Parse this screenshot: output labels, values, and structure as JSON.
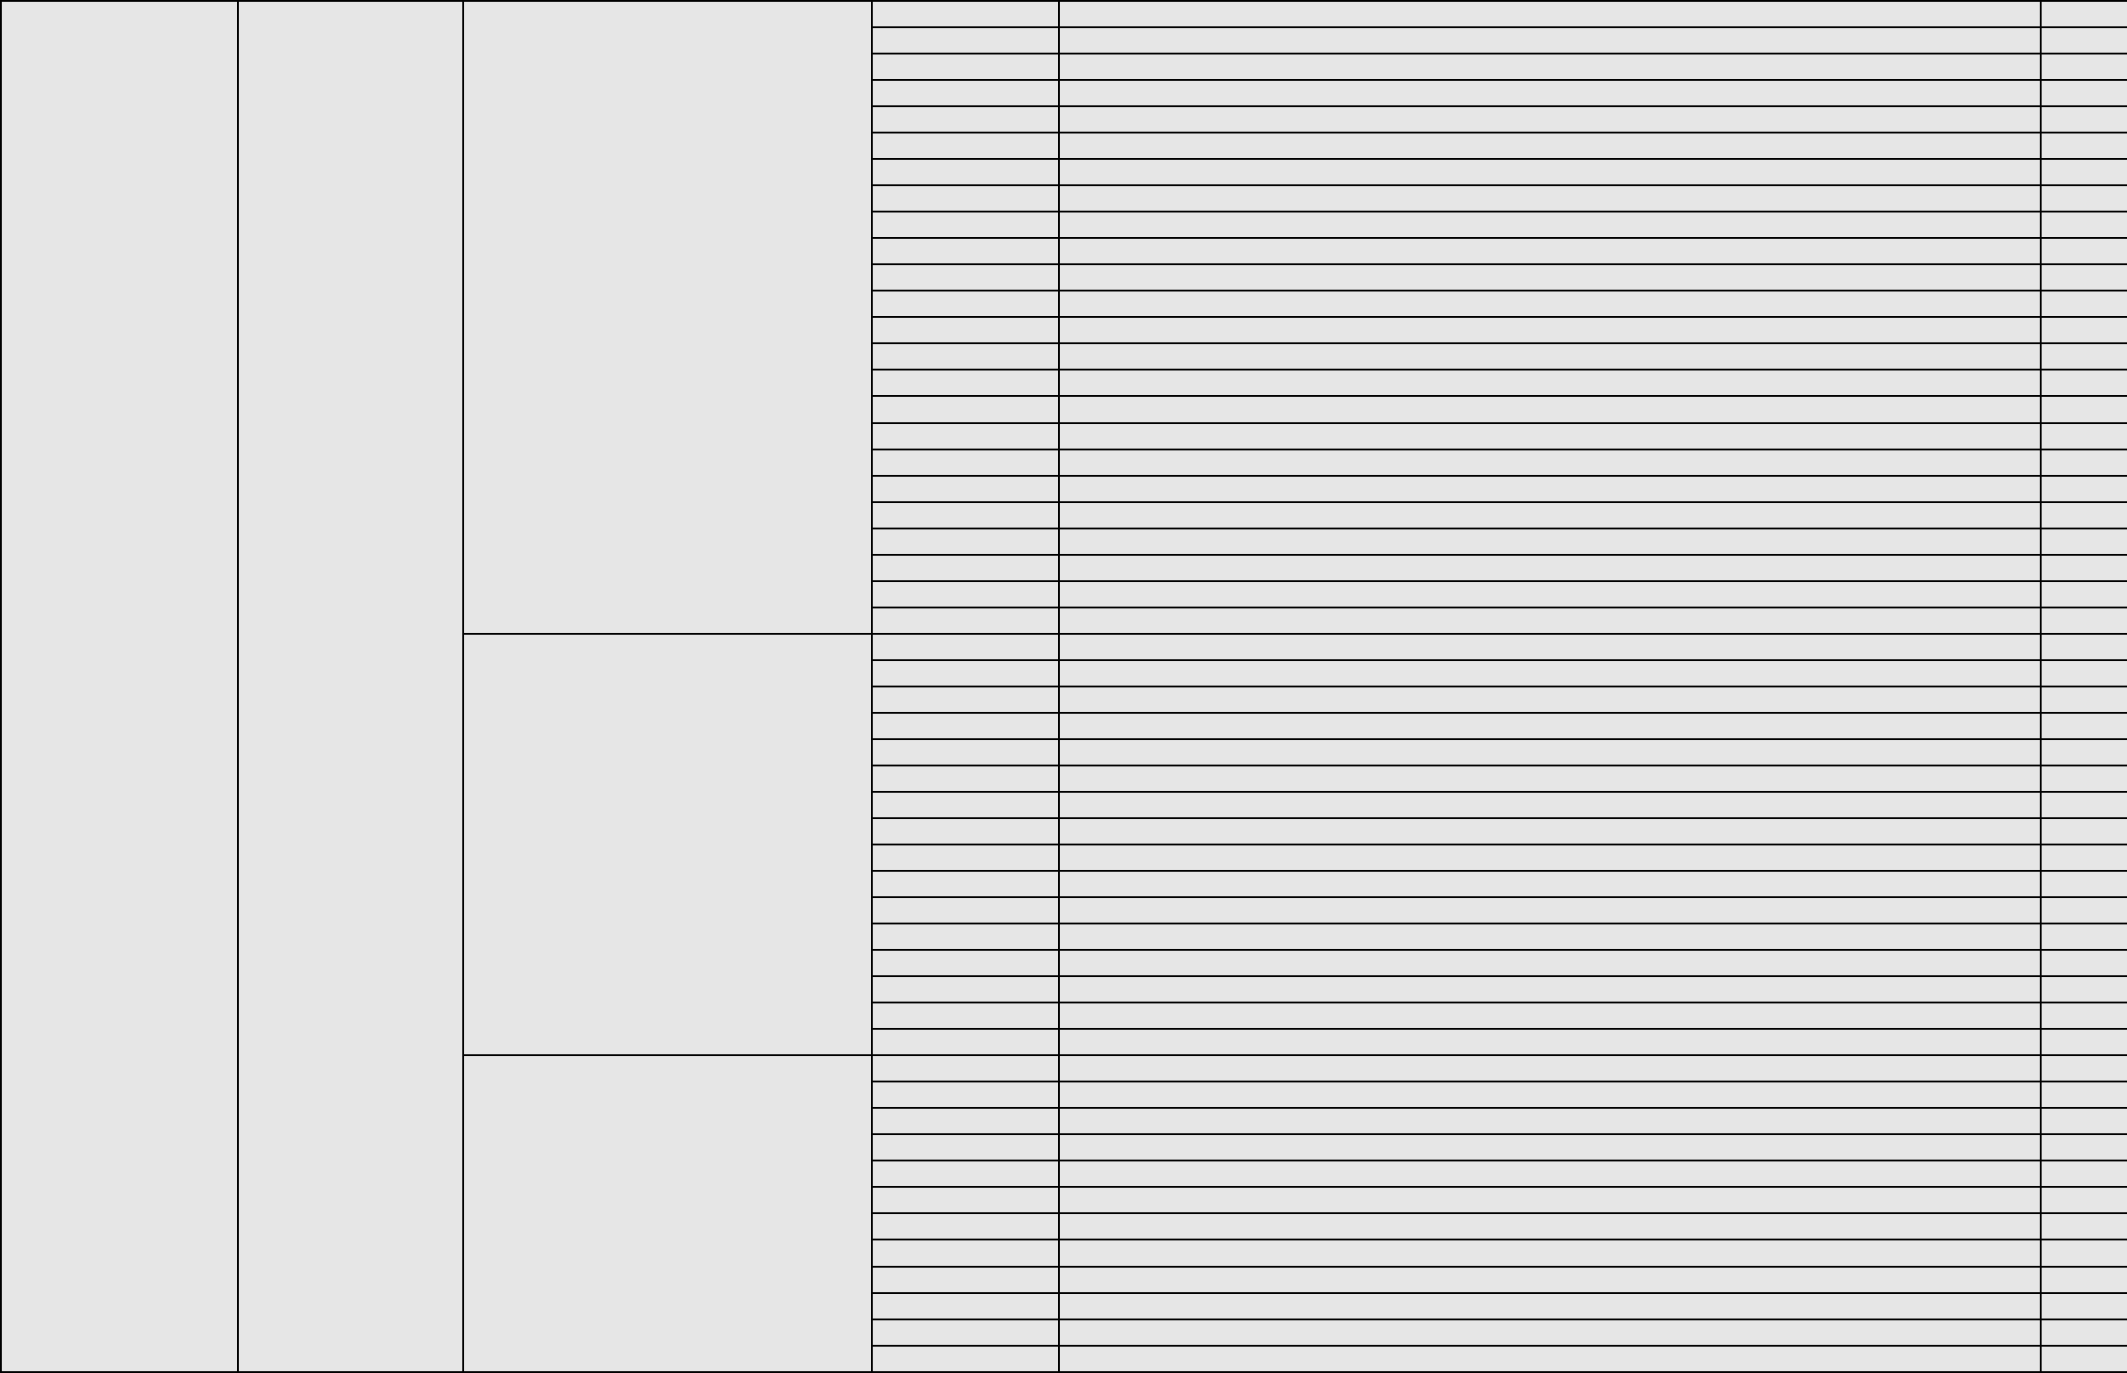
{
  "table": {
    "fill_color": "#e6e6e6",
    "border_color": "#000000",
    "columns": [
      "",
      "",
      "",
      "",
      "",
      ""
    ],
    "groups": [
      {
        "label": "",
        "rows": 24
      },
      {
        "label": "",
        "rows": 16
      },
      {
        "label": "",
        "rows": 12
      }
    ]
  }
}
